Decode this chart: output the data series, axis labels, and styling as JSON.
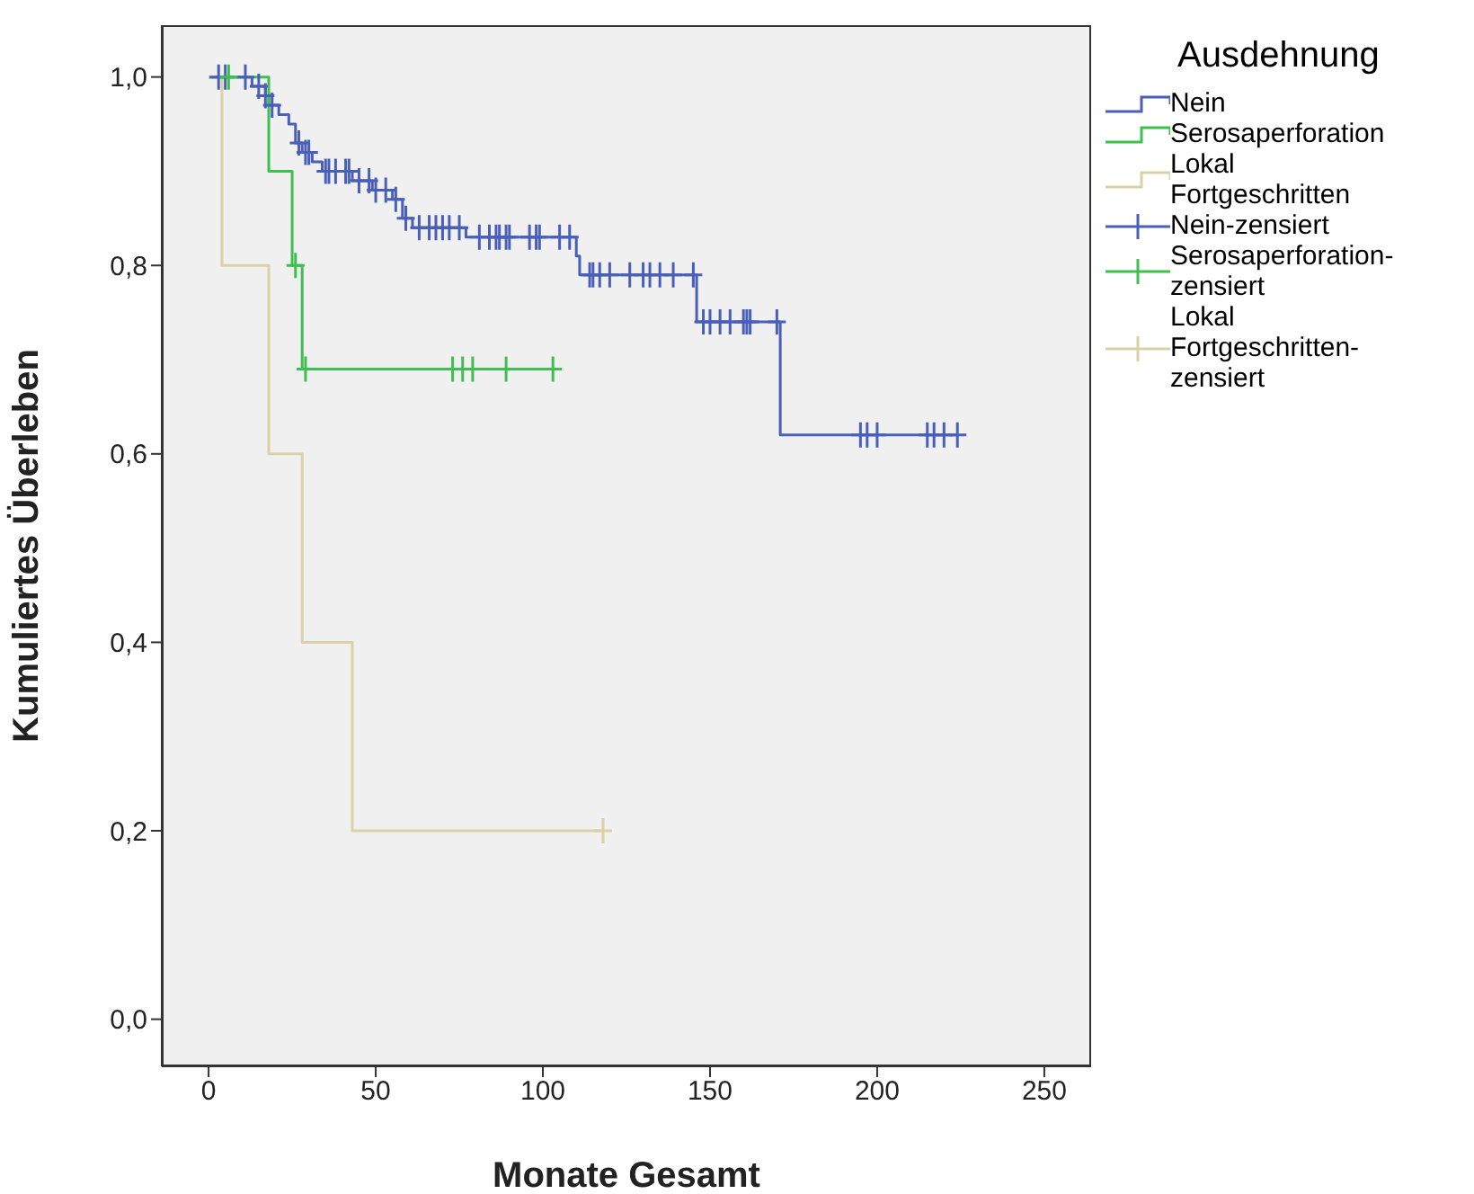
{
  "chart_data": {
    "type": "step",
    "xlabel": "Monate Gesamt",
    "ylabel": "Kumuliertes Überleben",
    "legend_title": "Ausdehnung",
    "legend": "right",
    "grid": false,
    "xlim": [
      -14,
      264
    ],
    "xticks": [
      0,
      50,
      100,
      150,
      200,
      250
    ],
    "ylim": [
      -0.05,
      1.055
    ],
    "yticks": [
      {
        "value": 0,
        "label": "0,0"
      },
      {
        "value": 0.2,
        "label": "0,2"
      },
      {
        "value": 0.4,
        "label": "0,4"
      },
      {
        "value": 0.6,
        "label": "0,6"
      },
      {
        "value": 0.8,
        "label": "0,8"
      },
      {
        "value": 1,
        "label": "1,0"
      }
    ],
    "series": [
      {
        "name": "Nein",
        "color": "#4a5fb8",
        "x": [
          0,
          13,
          17,
          18,
          21,
          24,
          26,
          28,
          31,
          34,
          43,
          49,
          55,
          58,
          61,
          77,
          110,
          111,
          146,
          171,
          224
        ],
        "values": [
          1,
          0.99,
          0.98,
          0.97,
          0.96,
          0.95,
          0.93,
          0.92,
          0.91,
          0.9,
          0.89,
          0.88,
          0.87,
          0.85,
          0.84,
          0.83,
          0.81,
          0.79,
          0.74,
          0.62,
          0.62
        ]
      },
      {
        "name": "Serosaperforation",
        "color": "#3fbf4f",
        "x": [
          0,
          18,
          25,
          28,
          103
        ],
        "values": [
          1,
          0.9,
          0.8,
          0.69,
          0.69
        ]
      },
      {
        "name": "Lokal Fortgeschritten",
        "color": "#d9d2a6",
        "x": [
          0,
          4,
          18,
          28,
          43,
          118
        ],
        "values": [
          1,
          0.8,
          0.6,
          0.4,
          0.2,
          0.2
        ]
      },
      {
        "name": "Nein-zensiert",
        "type": "scatter",
        "marker": "cross",
        "color": "#4a5fb8",
        "x": [
          3,
          5,
          11,
          15,
          17,
          19,
          27,
          29,
          30,
          35,
          36,
          38,
          41,
          42,
          45,
          48,
          50,
          53,
          56,
          59,
          63,
          66,
          68,
          70,
          72,
          75,
          81,
          84,
          86,
          87,
          89,
          90,
          96,
          98,
          99,
          105,
          108,
          114,
          115,
          117,
          120,
          126,
          130,
          132,
          135,
          139,
          145,
          148,
          150,
          153,
          156,
          160,
          161,
          162,
          170,
          195,
          197,
          200,
          215,
          217,
          220,
          224
        ],
        "values": [
          1,
          1,
          1,
          0.99,
          0.98,
          0.97,
          0.93,
          0.92,
          0.92,
          0.9,
          0.9,
          0.9,
          0.9,
          0.9,
          0.89,
          0.89,
          0.88,
          0.88,
          0.87,
          0.85,
          0.84,
          0.84,
          0.84,
          0.84,
          0.84,
          0.84,
          0.83,
          0.83,
          0.83,
          0.83,
          0.83,
          0.83,
          0.83,
          0.83,
          0.83,
          0.83,
          0.83,
          0.79,
          0.79,
          0.79,
          0.79,
          0.79,
          0.79,
          0.79,
          0.79,
          0.79,
          0.79,
          0.74,
          0.74,
          0.74,
          0.74,
          0.74,
          0.74,
          0.74,
          0.74,
          0.62,
          0.62,
          0.62,
          0.62,
          0.62,
          0.62,
          0.62
        ]
      },
      {
        "name": "Serosaperforation-zensiert",
        "type": "scatter",
        "marker": "cross",
        "color": "#3fbf4f",
        "x": [
          6,
          26,
          29,
          73,
          76,
          79,
          89,
          103
        ],
        "values": [
          1,
          0.8,
          0.69,
          0.69,
          0.69,
          0.69,
          0.69,
          0.69
        ]
      },
      {
        "name": "Lokal Fortgeschritten-zensiert",
        "type": "scatter",
        "marker": "cross",
        "color": "#d9d2a6",
        "x": [
          118
        ],
        "values": [
          0.2
        ]
      }
    ]
  }
}
